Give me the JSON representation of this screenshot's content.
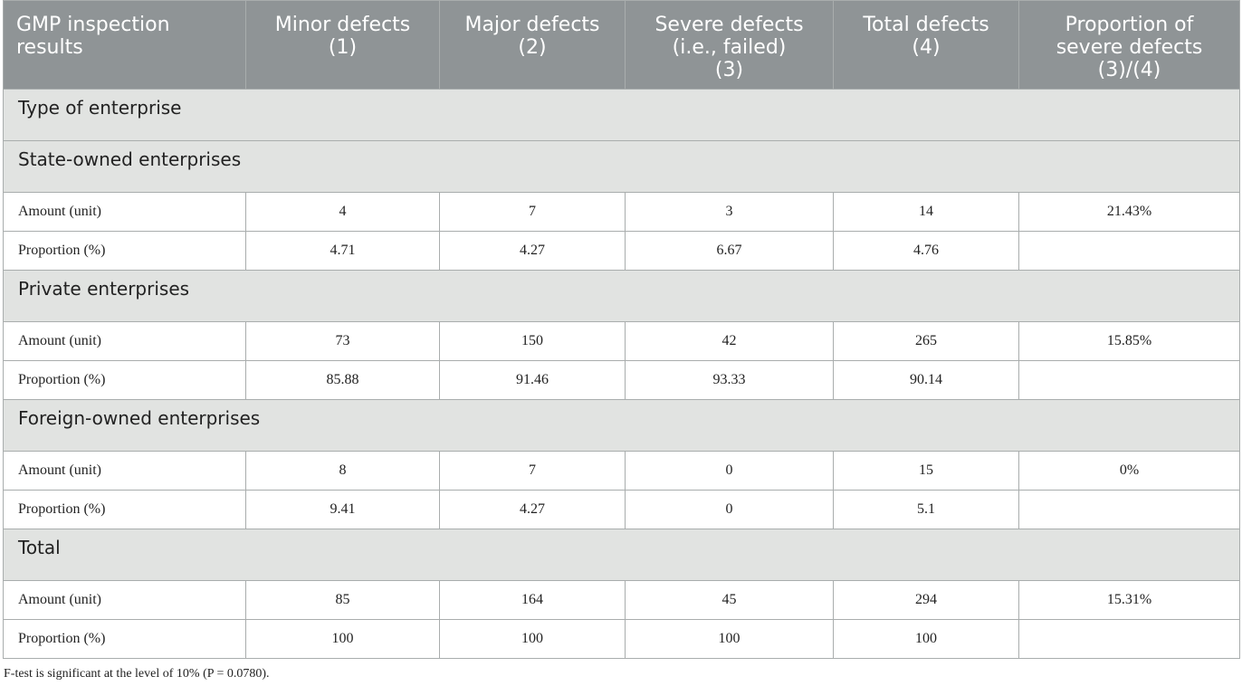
{
  "headers": [
    "GMP inspection\nresults",
    "Minor defects\n(1)",
    "Major defects\n(2)",
    "Severe defects\n(i.e., failed)\n(3)",
    "Total defects\n(4)",
    "Proportion of\nsevere defects\n(3)/(4)"
  ],
  "section_title": "Type of enterprise",
  "groups": [
    {
      "name": "State-owned enterprises",
      "rows": [
        {
          "label": "Amount (unit)",
          "values": [
            "4",
            "7",
            "3",
            "14",
            "21.43%"
          ]
        },
        {
          "label": "Proportion (%)",
          "values": [
            "4.71",
            "4.27",
            "6.67",
            "4.76",
            ""
          ]
        }
      ]
    },
    {
      "name": "Private enterprises",
      "rows": [
        {
          "label": "Amount (unit)",
          "values": [
            "73",
            "150",
            "42",
            "265",
            "15.85%"
          ]
        },
        {
          "label": "Proportion (%)",
          "values": [
            "85.88",
            "91.46",
            "93.33",
            "90.14",
            ""
          ]
        }
      ]
    },
    {
      "name": "Foreign-owned enterprises",
      "rows": [
        {
          "label": "Amount (unit)",
          "values": [
            "8",
            "7",
            "0",
            "15",
            "0%"
          ]
        },
        {
          "label": "Proportion (%)",
          "values": [
            "9.41",
            "4.27",
            "0",
            "5.1",
            ""
          ]
        }
      ]
    },
    {
      "name": "Total",
      "rows": [
        {
          "label": "Amount (unit)",
          "values": [
            "85",
            "164",
            "45",
            "294",
            "15.31%"
          ]
        },
        {
          "label": "Proportion (%)",
          "values": [
            "100",
            "100",
            "100",
            "100",
            ""
          ]
        }
      ]
    }
  ],
  "footnote": "F-test is significant at the level of 10% (P = 0.0780).",
  "colors": {
    "header_bg": "#8f9496",
    "group_bg": "#e1e3e1",
    "border": "#a9adad"
  }
}
